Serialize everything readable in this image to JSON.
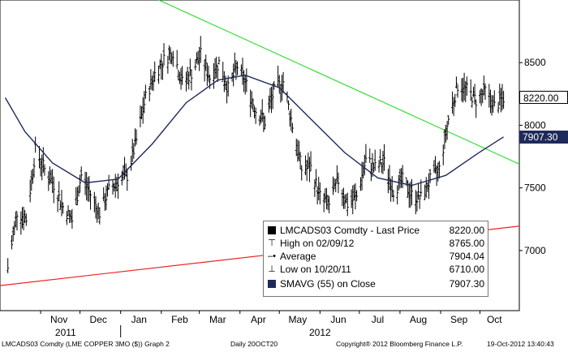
{
  "chart_data": {
    "type": "bar",
    "title": "LMCADS03 Comdty - Last Price",
    "x_tick_labels": [
      "Nov",
      "Dec",
      "Jan",
      "Feb",
      "Mar",
      "Apr",
      "May",
      "Jun",
      "Jul",
      "Aug",
      "Sep",
      "Oct"
    ],
    "year_labels": [
      "2011",
      "2012"
    ],
    "y_tick_labels": [
      "7000",
      "7500",
      "8000",
      "8500"
    ],
    "ylim": [
      6520,
      9000
    ],
    "price_weekly": [
      {
        "date": "2011-10-07",
        "value": 6860
      },
      {
        "date": "2011-10-14",
        "value": 7310
      },
      {
        "date": "2011-10-21",
        "value": 7250
      },
      {
        "date": "2011-10-28",
        "value": 7800
      },
      {
        "date": "2011-11-04",
        "value": 7650
      },
      {
        "date": "2011-11-11",
        "value": 7530
      },
      {
        "date": "2011-11-18",
        "value": 7350
      },
      {
        "date": "2011-11-25",
        "value": 7240
      },
      {
        "date": "2011-12-02",
        "value": 7600
      },
      {
        "date": "2011-12-09",
        "value": 7450
      },
      {
        "date": "2011-12-16",
        "value": 7300
      },
      {
        "date": "2011-12-23",
        "value": 7480
      },
      {
        "date": "2011-12-30",
        "value": 7560
      },
      {
        "date": "2012-01-06",
        "value": 7600
      },
      {
        "date": "2012-01-13",
        "value": 7880
      },
      {
        "date": "2012-01-20",
        "value": 8220
      },
      {
        "date": "2012-01-27",
        "value": 8410
      },
      {
        "date": "2012-02-03",
        "value": 8520
      },
      {
        "date": "2012-02-10",
        "value": 8590
      },
      {
        "date": "2012-02-17",
        "value": 8340
      },
      {
        "date": "2012-02-24",
        "value": 8420
      },
      {
        "date": "2012-03-02",
        "value": 8560
      },
      {
        "date": "2012-03-09",
        "value": 8380
      },
      {
        "date": "2012-03-16",
        "value": 8500
      },
      {
        "date": "2012-03-23",
        "value": 8290
      },
      {
        "date": "2012-03-30",
        "value": 8470
      },
      {
        "date": "2012-04-06",
        "value": 8320
      },
      {
        "date": "2012-04-13",
        "value": 8120
      },
      {
        "date": "2012-04-20",
        "value": 8030
      },
      {
        "date": "2012-04-27",
        "value": 8270
      },
      {
        "date": "2012-05-04",
        "value": 8350
      },
      {
        "date": "2012-05-11",
        "value": 8000
      },
      {
        "date": "2012-05-18",
        "value": 7650
      },
      {
        "date": "2012-05-25",
        "value": 7660
      },
      {
        "date": "2012-06-01",
        "value": 7430
      },
      {
        "date": "2012-06-08",
        "value": 7370
      },
      {
        "date": "2012-06-15",
        "value": 7560
      },
      {
        "date": "2012-06-22",
        "value": 7370
      },
      {
        "date": "2012-06-29",
        "value": 7430
      },
      {
        "date": "2012-07-06",
        "value": 7720
      },
      {
        "date": "2012-07-13",
        "value": 7660
      },
      {
        "date": "2012-07-20",
        "value": 7700
      },
      {
        "date": "2012-07-27",
        "value": 7480
      },
      {
        "date": "2012-08-03",
        "value": 7560
      },
      {
        "date": "2012-08-10",
        "value": 7440
      },
      {
        "date": "2012-08-17",
        "value": 7420
      },
      {
        "date": "2012-08-24",
        "value": 7560
      },
      {
        "date": "2012-08-31",
        "value": 7650
      },
      {
        "date": "2012-09-07",
        "value": 8050
      },
      {
        "date": "2012-09-14",
        "value": 8320
      },
      {
        "date": "2012-09-21",
        "value": 8280
      },
      {
        "date": "2012-09-28",
        "value": 8200
      },
      {
        "date": "2012-10-05",
        "value": 8270
      },
      {
        "date": "2012-10-12",
        "value": 8150
      },
      {
        "date": "2012-10-19",
        "value": 8220
      }
    ],
    "sma_55": [
      {
        "date": "2011-10-05",
        "value": 8220
      },
      {
        "date": "2011-10-20",
        "value": 7950
      },
      {
        "date": "2011-11-10",
        "value": 7700
      },
      {
        "date": "2011-12-05",
        "value": 7540
      },
      {
        "date": "2011-12-30",
        "value": 7570
      },
      {
        "date": "2012-01-25",
        "value": 7850
      },
      {
        "date": "2012-02-20",
        "value": 8180
      },
      {
        "date": "2012-03-15",
        "value": 8360
      },
      {
        "date": "2012-04-05",
        "value": 8400
      },
      {
        "date": "2012-05-01",
        "value": 8300
      },
      {
        "date": "2012-05-25",
        "value": 8050
      },
      {
        "date": "2012-06-20",
        "value": 7780
      },
      {
        "date": "2012-07-15",
        "value": 7580
      },
      {
        "date": "2012-08-10",
        "value": 7520
      },
      {
        "date": "2012-09-05",
        "value": 7600
      },
      {
        "date": "2012-09-30",
        "value": 7780
      },
      {
        "date": "2012-10-19",
        "value": 7907.3
      }
    ],
    "trendlines": [
      {
        "color": "#33dd33",
        "from": {
          "date": "2012-01-30",
          "value": 9000
        },
        "to": {
          "date": "2012-10-31",
          "value": 7690
        }
      },
      {
        "color": "#ee2222",
        "from": {
          "date": "2011-10-01",
          "value": 6720
        },
        "to": {
          "date": "2012-10-31",
          "value": 7195
        }
      }
    ],
    "legend": [
      {
        "icon": "square",
        "label": "LMCADS03 Comdty - Last Price",
        "value": "8220.00"
      },
      {
        "icon": "high",
        "label": "High on 02/09/12",
        "value": "8765.00"
      },
      {
        "icon": "average",
        "label": "Average",
        "value": "7904.04"
      },
      {
        "icon": "low",
        "label": "Low on 10/20/11",
        "value": "6710.00"
      },
      {
        "icon": "smavg",
        "label": "SMAVG (55) on Close",
        "value": "7907.30"
      }
    ],
    "badges": [
      {
        "text": "8220.00",
        "value": 8220.0,
        "style": "price"
      },
      {
        "text": "7907.30",
        "value": 7907.3,
        "style": "sma"
      }
    ],
    "colors": {
      "price": "#000000",
      "sma": "#1f2a5a",
      "trend_green": "#33dd33",
      "trend_red": "#ee2222",
      "smavg_badge": "#1f2a5a"
    }
  },
  "footer": {
    "ticker": "LMCADS03 Comdty (LME COPPER   3MO ($)) Graph 2",
    "period": "Daily 20OCT20",
    "copyright": "Copyright® 2012 Bloomberg Finance L.P.",
    "timestamp": "19-Oct-2012 13:40:43"
  }
}
